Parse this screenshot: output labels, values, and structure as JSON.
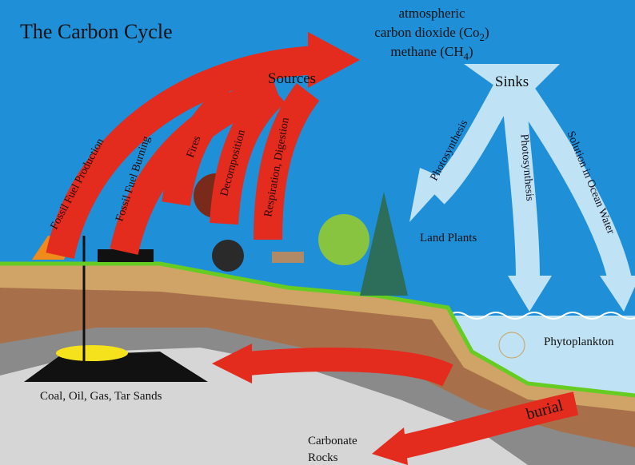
{
  "title": "The Carbon Cycle",
  "atmosphere": {
    "line1": "atmospheric",
    "co2": {
      "text": "carbon dioxide (Co",
      "sub": "2",
      "end": ")"
    },
    "ch4": {
      "text": "methane (CH",
      "sub": "4",
      "end": ")"
    }
  },
  "sources": {
    "label": "Sources",
    "arrows": [
      "Fossil Fuel Production",
      "Fossil Fuel Burning",
      "Fires",
      "Decomposition",
      "Respiration, Digestion"
    ]
  },
  "sinks": {
    "label": "Sinks",
    "arrows": [
      "Photosynthesis",
      "Photosynthesis",
      "Solution in Ocean Water"
    ]
  },
  "labels": {
    "land_plants": "Land Plants",
    "phytoplankton": "Phytoplankton",
    "fossil": "Coal, Oil, Gas, Tar Sands",
    "burial": "burial",
    "carbonate": [
      "Carbonate",
      "Rocks"
    ]
  }
}
